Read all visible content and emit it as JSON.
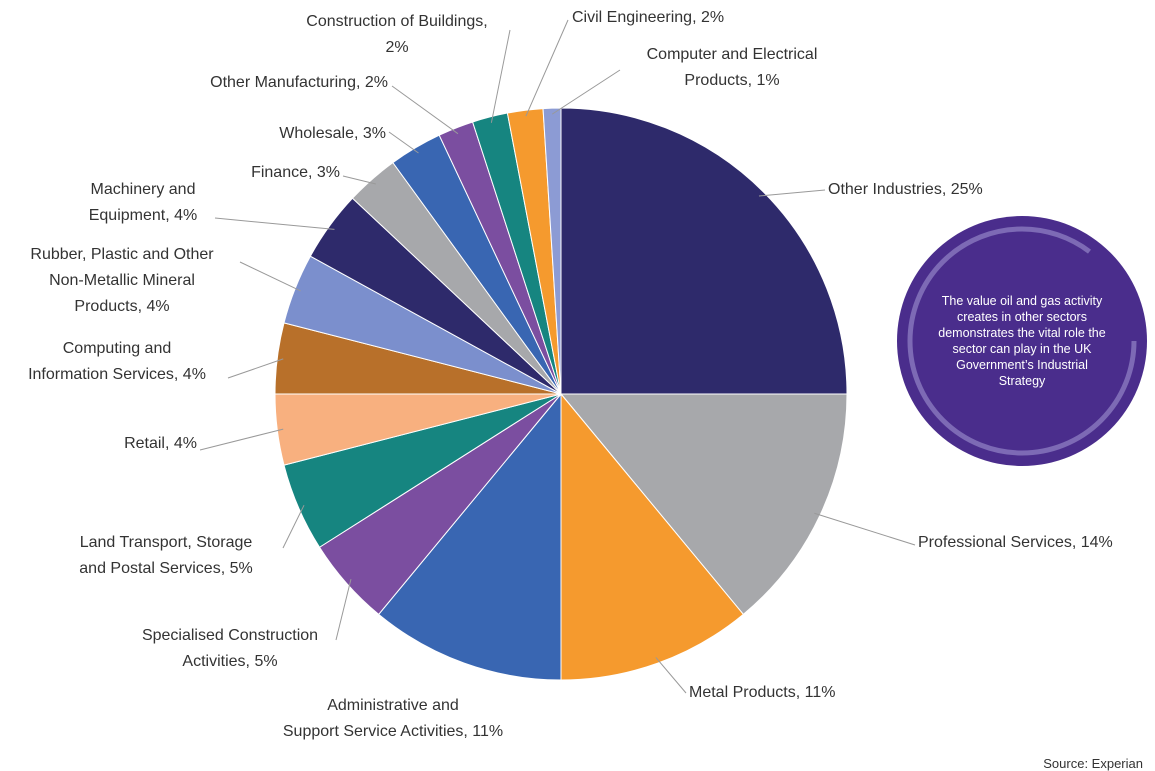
{
  "chart_data": {
    "type": "pie",
    "categories": [
      "Other Industries, 25%",
      "Professional Services, 14%",
      "Metal Products, 11%",
      "Administrative and Support Service Activities, 11%",
      "Specialised Construction Activities, 5%",
      "Land Transport, Storage and Postal Services, 5%",
      "Retail, 4%",
      "Computing and Information Services, 4%",
      "Rubber, Plastic and Other Non-Metallic Mineral Products, 4%",
      "Machinery and Equipment, 4%",
      "Finance, 3%",
      "Wholesale, 3%",
      "Other Manufacturing, 2%",
      "Construction of Buildings, 2%",
      "Civil Engineering, 2%",
      "Computer and Electrical Products, 1%"
    ],
    "values": [
      25,
      14,
      11,
      11,
      5,
      5,
      4,
      4,
      4,
      4,
      3,
      3,
      2,
      2,
      2,
      1
    ],
    "colors": [
      "#2e2a6b",
      "#a7a8ab",
      "#f59a2e",
      "#3966b2",
      "#7b4ea0",
      "#168580",
      "#f8b07f",
      "#b8702a",
      "#7b8fcd",
      "#2e2a6b",
      "#a7a8ab",
      "#3966b2",
      "#7b4ea0",
      "#168580",
      "#f59a2e",
      "#8c9bd4"
    ],
    "annotation": "The value oil and gas activity creates in other sectors demonstrates the vital role the sector can play in the UK Government’s Industrial Strategy",
    "source": "Source: Experian"
  }
}
